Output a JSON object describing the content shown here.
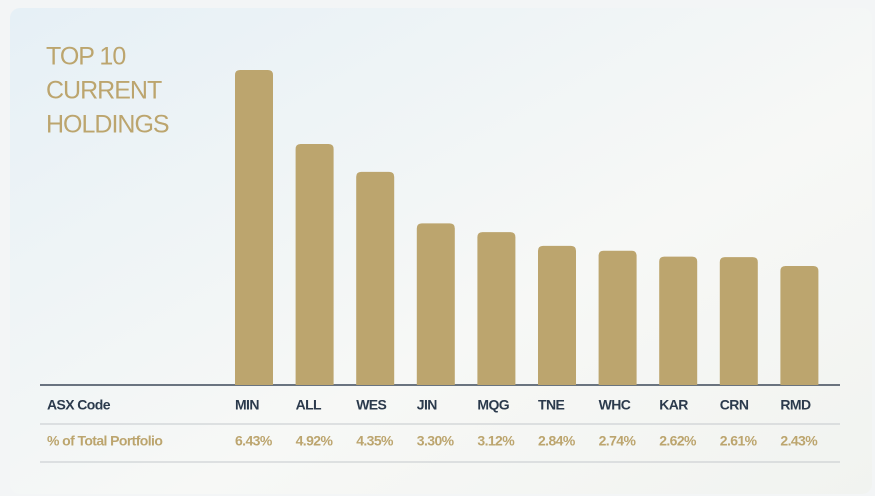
{
  "chart_data": {
    "type": "bar",
    "title": [
      "TOP 10",
      "CURRENT",
      "HOLDINGS"
    ],
    "category_label": "ASX Code",
    "value_label": "% of Total Portfolio",
    "categories": [
      "MIN",
      "ALL",
      "WES",
      "JIN",
      "MQG",
      "TNE",
      "WHC",
      "KAR",
      "CRN",
      "RMD"
    ],
    "values": [
      6.43,
      4.92,
      4.35,
      3.3,
      3.12,
      2.84,
      2.74,
      2.62,
      2.61,
      2.43
    ],
    "value_labels": [
      "6.43%",
      "4.92%",
      "4.35%",
      "3.30%",
      "3.12%",
      "2.84%",
      "2.74%",
      "2.62%",
      "2.61%",
      "2.43%"
    ],
    "color": "#bca56e"
  }
}
